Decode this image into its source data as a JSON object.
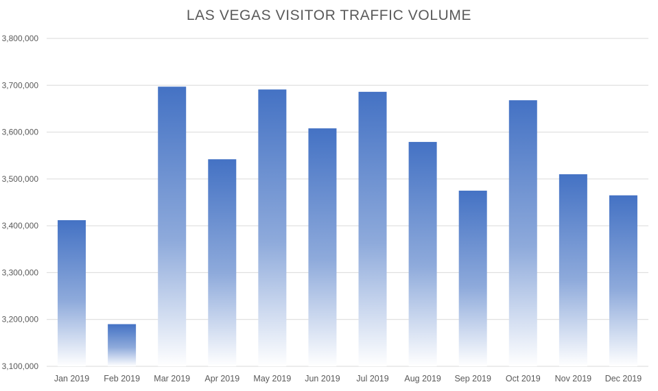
{
  "chart_data": {
    "type": "bar",
    "title": "LAS VEGAS VISITOR TRAFFIC VOLUME",
    "xlabel": "",
    "ylabel": "",
    "categories": [
      "Jan 2019",
      "Feb 2019",
      "Mar 2019",
      "Apr 2019",
      "May 2019",
      "Jun 2019",
      "Jul 2019",
      "Aug 2019",
      "Sep 2019",
      "Oct 2019",
      "Nov 2019",
      "Dec 2019"
    ],
    "values": [
      3412000,
      3190000,
      3697000,
      3542000,
      3691000,
      3608000,
      3686000,
      3579000,
      3475000,
      3668000,
      3510000,
      3465000
    ],
    "ylim": [
      3100000,
      3800000
    ],
    "y_ticks": [
      3100000,
      3200000,
      3300000,
      3400000,
      3500000,
      3600000,
      3700000,
      3800000
    ],
    "y_tick_labels": [
      "3,100,000",
      "3,200,000",
      "3,300,000",
      "3,400,000",
      "3,500,000",
      "3,600,000",
      "3,700,000",
      "3,800,000"
    ],
    "grid": true,
    "legend": "none",
    "colors": {
      "bar_top": "#4472c4",
      "bar_mid": "#8eaadb",
      "bar_bottom": "#ffffff",
      "grid": "#d9d9d9",
      "text": "#595959"
    }
  }
}
